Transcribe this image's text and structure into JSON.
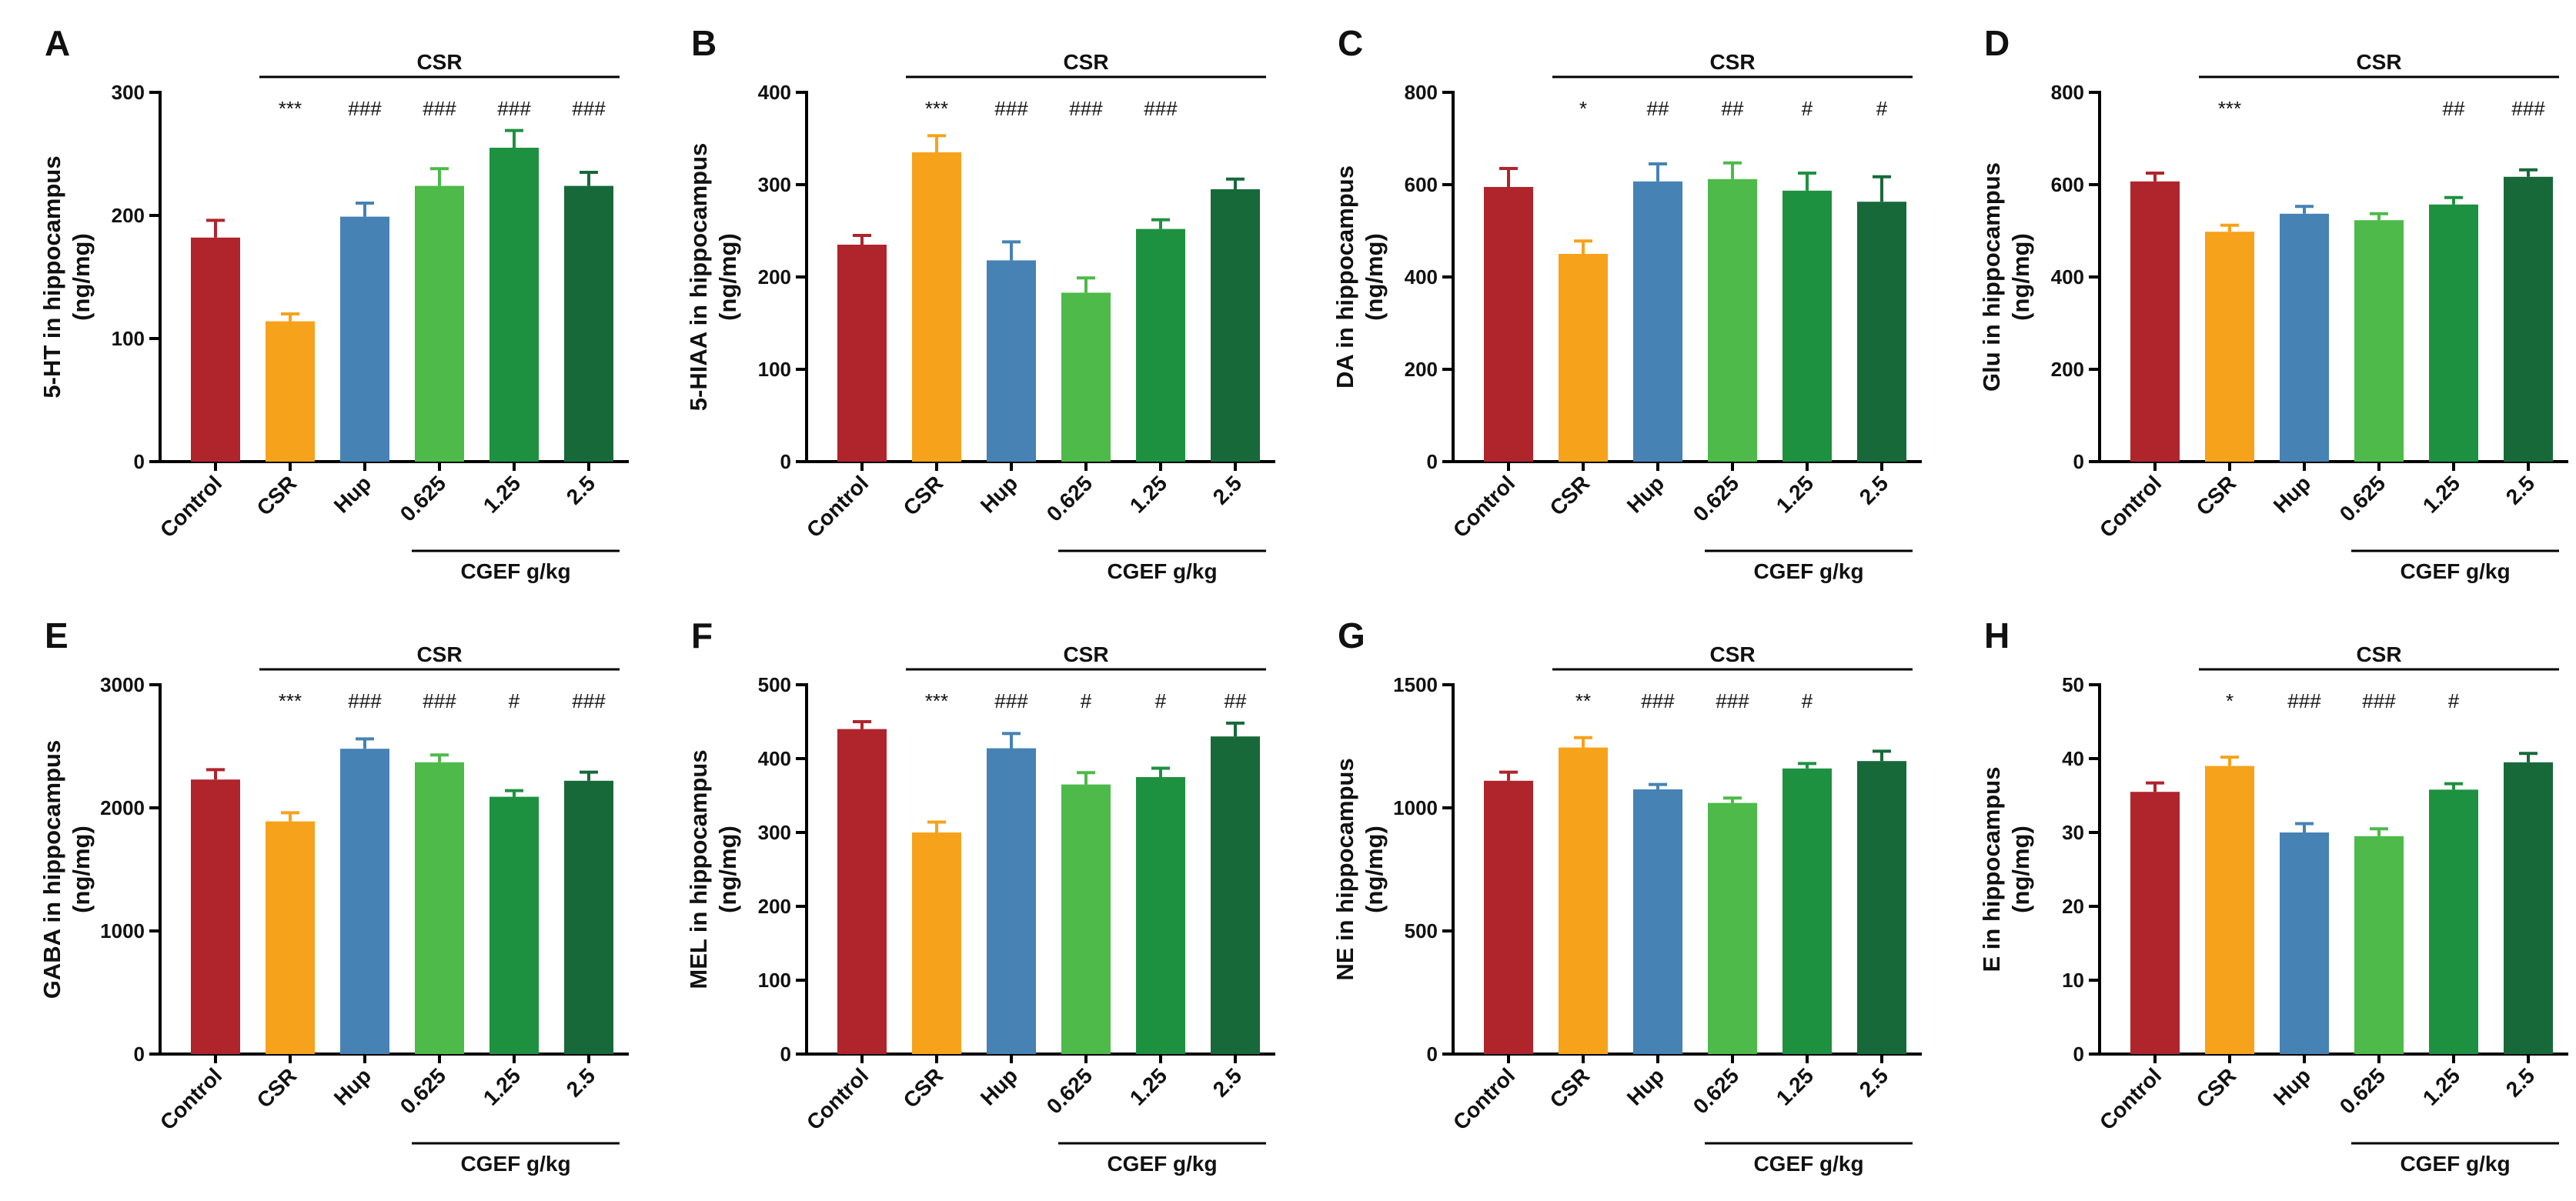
{
  "colors": {
    "Control": "#b0242c",
    "CSR": "#f7a21b",
    "Hup": "#4682b4",
    "0.625": "#4dba4a",
    "1.25": "#1e9141",
    "2.5": "#17693a"
  },
  "shared": {
    "categories": [
      "Control",
      "CSR",
      "Hup",
      "0.625",
      "1.25",
      "2.5"
    ],
    "top_group_label": "CSR",
    "bottom_group_label": "CGEF g/kg"
  },
  "chart_data": [
    {
      "type": "bar",
      "panel": "A",
      "ylabel": "5-HT in hippocampus",
      "yunit": "(ng/mg)",
      "ylim": [
        0,
        300
      ],
      "yticks": [
        0,
        100,
        200,
        300
      ],
      "categories": [
        "Control",
        "CSR",
        "Hup",
        "0.625",
        "1.25",
        "2.5"
      ],
      "values": [
        182,
        114,
        199,
        224,
        255,
        224
      ],
      "errors": [
        14,
        6,
        11,
        14,
        14,
        11
      ],
      "significance": [
        "",
        "***",
        "###",
        "###",
        "###",
        "###"
      ]
    },
    {
      "type": "bar",
      "panel": "B",
      "ylabel": "5-HIAA in hippocampus",
      "yunit": "(ng/mg)",
      "ylim": [
        0,
        400
      ],
      "yticks": [
        0,
        100,
        200,
        300,
        400
      ],
      "categories": [
        "Control",
        "CSR",
        "Hup",
        "0.625",
        "1.25",
        "2.5"
      ],
      "values": [
        235,
        335,
        218,
        183,
        252,
        295
      ],
      "errors": [
        10,
        18,
        20,
        16,
        10,
        11
      ],
      "significance": [
        "",
        "***",
        "###",
        "###",
        "###",
        ""
      ]
    },
    {
      "type": "bar",
      "panel": "C",
      "ylabel": "DA in hippocampus",
      "yunit": "(ng/mg)",
      "ylim": [
        0,
        800
      ],
      "yticks": [
        0,
        200,
        400,
        600,
        800
      ],
      "categories": [
        "Control",
        "CSR",
        "Hup",
        "0.625",
        "1.25",
        "2.5"
      ],
      "values": [
        595,
        450,
        607,
        612,
        587,
        563
      ],
      "errors": [
        40,
        28,
        38,
        35,
        38,
        54
      ],
      "significance": [
        "",
        "*",
        "##",
        "##",
        "#",
        "#"
      ]
    },
    {
      "type": "bar",
      "panel": "D",
      "ylabel": "Glu in hippocampus",
      "yunit": "(ng/mg)",
      "ylim": [
        0,
        800
      ],
      "yticks": [
        0,
        200,
        400,
        600,
        800
      ],
      "categories": [
        "Control",
        "CSR",
        "Hup",
        "0.625",
        "1.25",
        "2.5"
      ],
      "values": [
        607,
        498,
        537,
        523,
        557,
        617
      ],
      "errors": [
        18,
        14,
        16,
        14,
        15,
        15
      ],
      "significance": [
        "",
        "***",
        "",
        "",
        "##",
        "###"
      ]
    },
    {
      "type": "bar",
      "panel": "E",
      "ylabel": "GABA in hippocampus",
      "yunit": "(ng/mg)",
      "ylim": [
        0,
        3000
      ],
      "yticks": [
        0,
        1000,
        2000,
        3000
      ],
      "categories": [
        "Control",
        "CSR",
        "Hup",
        "0.625",
        "1.25",
        "2.5"
      ],
      "values": [
        2230,
        1890,
        2480,
        2370,
        2090,
        2220
      ],
      "errors": [
        80,
        70,
        80,
        60,
        50,
        70
      ],
      "significance": [
        "",
        "***",
        "###",
        "###",
        "#",
        "###"
      ]
    },
    {
      "type": "bar",
      "panel": "F",
      "ylabel": "MEL in hippocampus",
      "yunit": "(ng/mg)",
      "ylim": [
        0,
        500
      ],
      "yticks": [
        0,
        100,
        200,
        300,
        400,
        500
      ],
      "categories": [
        "Control",
        "CSR",
        "Hup",
        "0.625",
        "1.25",
        "2.5"
      ],
      "values": [
        440,
        300,
        414,
        365,
        375,
        430
      ],
      "errors": [
        10,
        14,
        20,
        16,
        12,
        18
      ],
      "significance": [
        "",
        "***",
        "###",
        "#",
        "#",
        "##"
      ]
    },
    {
      "type": "bar",
      "panel": "G",
      "ylabel": "NE in hippocampus",
      "yunit": "(ng/mg)",
      "ylim": [
        0,
        1500
      ],
      "yticks": [
        0,
        500,
        1000,
        1500
      ],
      "categories": [
        "Control",
        "CSR",
        "Hup",
        "0.625",
        "1.25",
        "2.5"
      ],
      "values": [
        1110,
        1245,
        1075,
        1020,
        1160,
        1190
      ],
      "errors": [
        35,
        40,
        20,
        20,
        20,
        40
      ],
      "significance": [
        "",
        "**",
        "###",
        "###",
        "#",
        ""
      ]
    },
    {
      "type": "bar",
      "panel": "H",
      "ylabel": "E in hippocampus",
      "yunit": "(ng/mg)",
      "ylim": [
        0,
        50
      ],
      "yticks": [
        0,
        10,
        20,
        30,
        40,
        50
      ],
      "categories": [
        "Control",
        "CSR",
        "Hup",
        "0.625",
        "1.25",
        "2.5"
      ],
      "values": [
        35.5,
        39,
        30,
        29.5,
        35.8,
        39.5
      ],
      "errors": [
        1.2,
        1.2,
        1.2,
        1.0,
        0.8,
        1.2
      ],
      "significance": [
        "",
        "*",
        "###",
        "###",
        "#",
        ""
      ]
    }
  ]
}
